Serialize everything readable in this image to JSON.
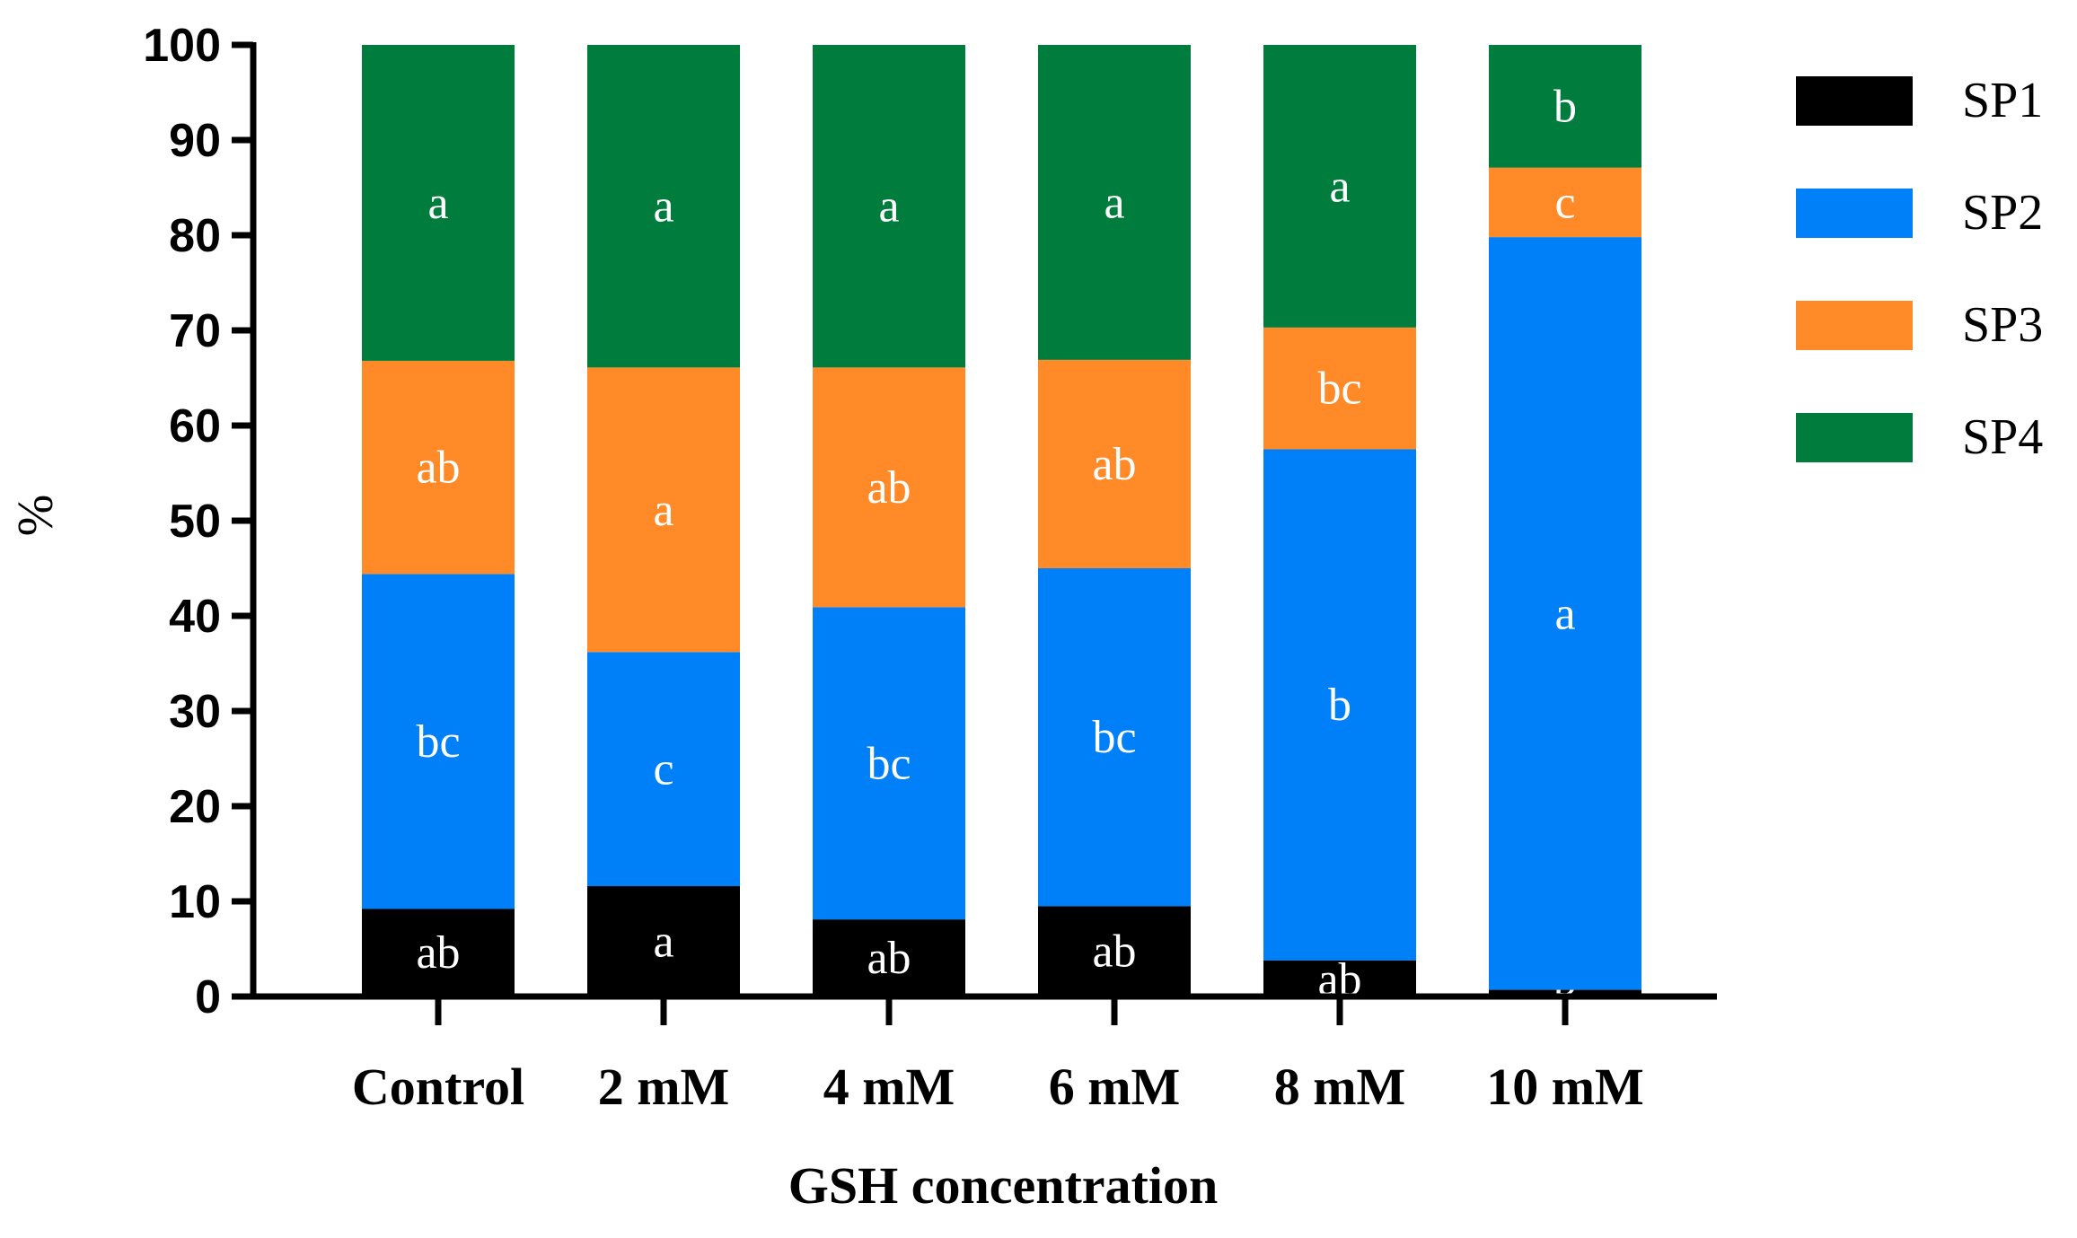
{
  "chart_data": {
    "type": "bar",
    "stacked": true,
    "title": "",
    "xlabel": "GSH concentration",
    "ylabel": "%",
    "ylim": [
      0,
      100
    ],
    "yticks": [
      0,
      10,
      20,
      30,
      40,
      50,
      60,
      70,
      80,
      90,
      100
    ],
    "categories": [
      "Control",
      "2 mM",
      "4 mM",
      "6 mM",
      "8 mM",
      "10 mM"
    ],
    "legend_position": "right",
    "series": [
      {
        "name": "SP1",
        "color": "#000000",
        "values": [
          9.2,
          11.6,
          8.1,
          9.5,
          3.8,
          0.7
        ],
        "labels": [
          "ab",
          "a",
          "ab",
          "ab",
          "ab",
          "b"
        ]
      },
      {
        "name": "SP2",
        "color": "#0080f8",
        "values": [
          35.2,
          24.6,
          32.8,
          35.5,
          53.7,
          79.1
        ],
        "labels": [
          "bc",
          "c",
          "bc",
          "bc",
          "b",
          "a"
        ]
      },
      {
        "name": "SP3",
        "color": "#ff8a27",
        "values": [
          22.4,
          29.9,
          25.2,
          21.9,
          12.8,
          7.3
        ],
        "labels": [
          "ab",
          "a",
          "ab",
          "ab",
          "bc",
          "c"
        ]
      },
      {
        "name": "SP4",
        "color": "#007c3c",
        "values": [
          33.2,
          33.9,
          33.9,
          33.1,
          29.7,
          12.9
        ],
        "labels": [
          "a",
          "a",
          "a",
          "a",
          "a",
          "b"
        ]
      }
    ]
  }
}
